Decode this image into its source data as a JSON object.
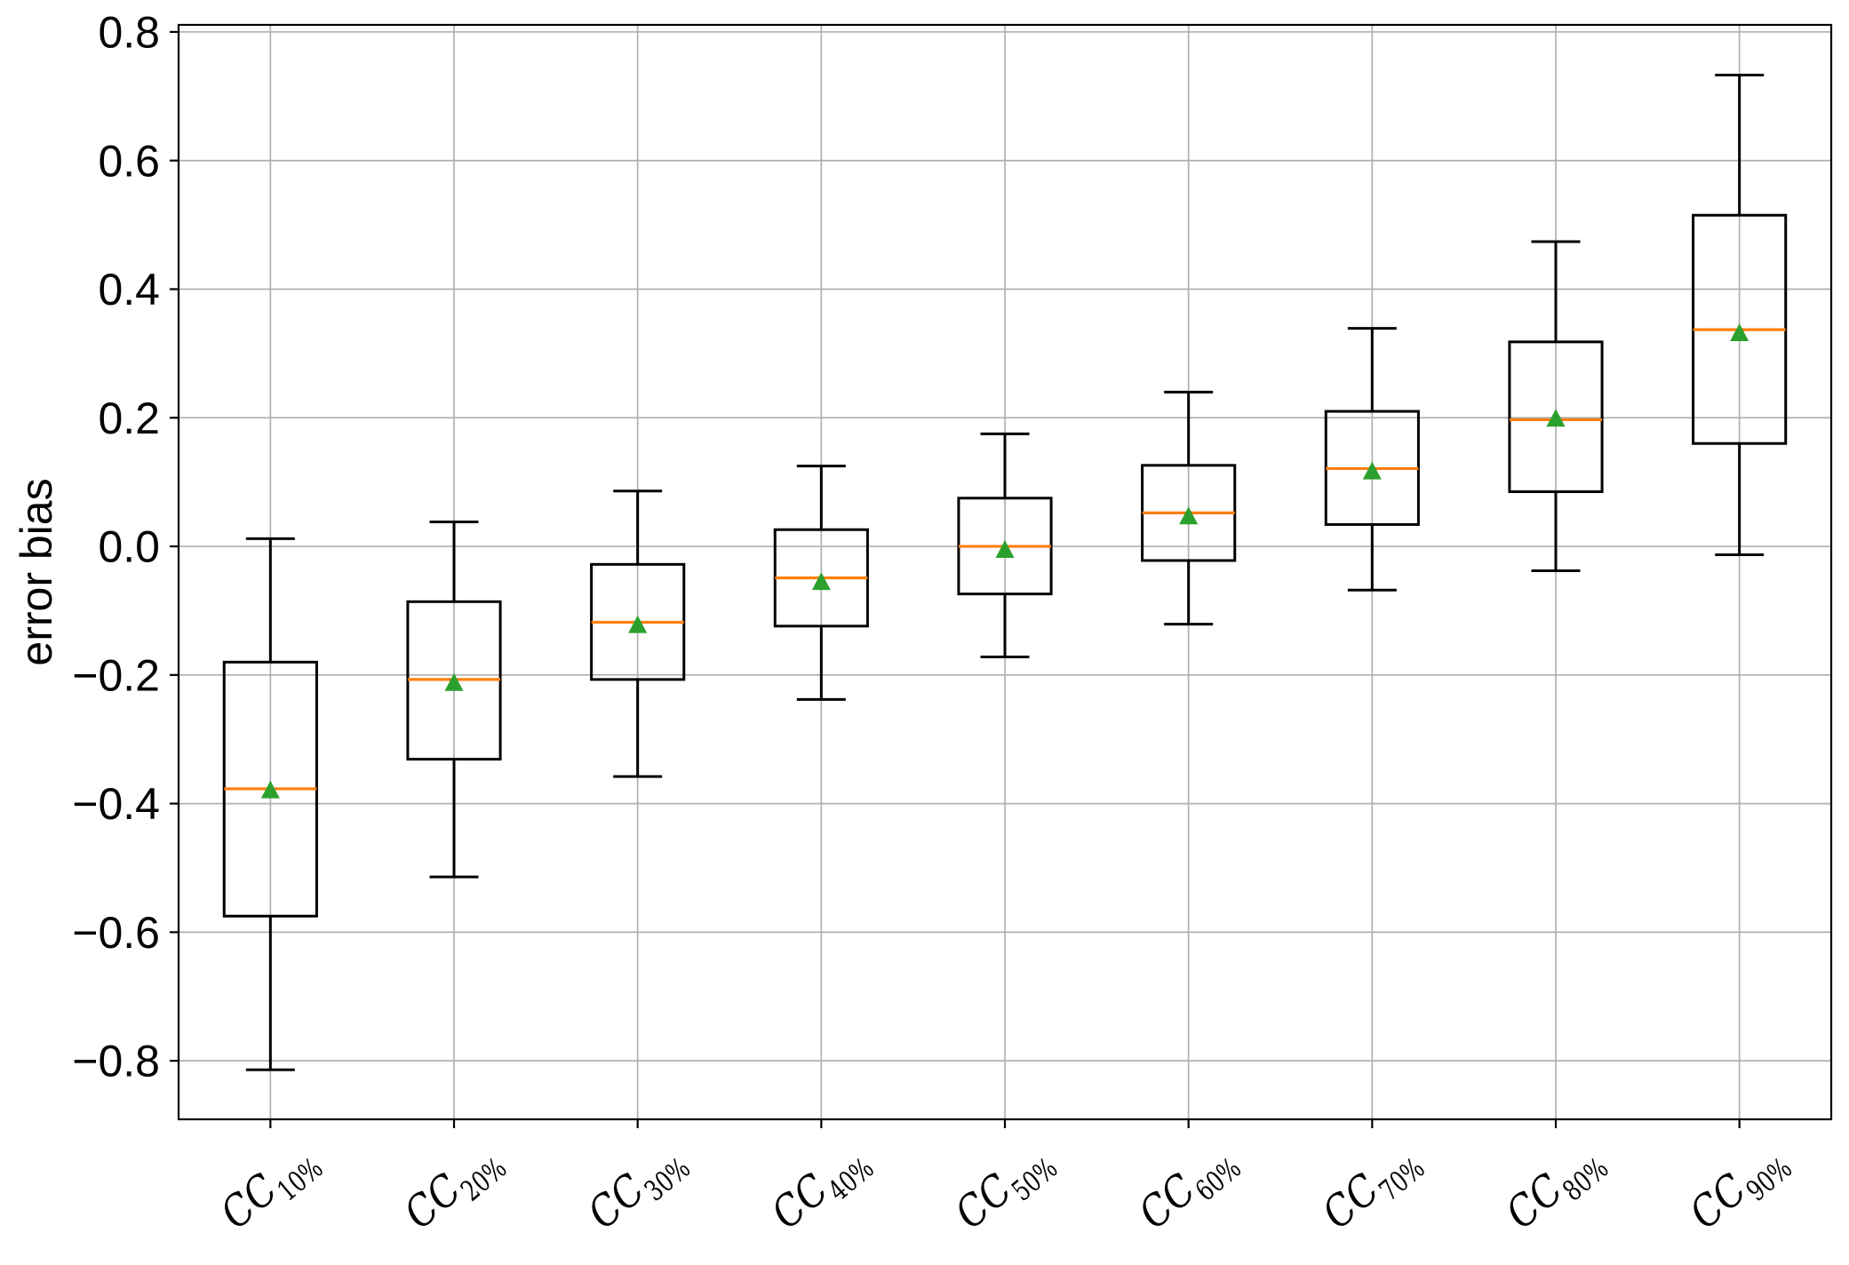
{
  "chart_data": {
    "type": "box",
    "title": "",
    "xlabel": "",
    "ylabel": "error bias",
    "grid": true,
    "legend": null,
    "ylim": [
      -0.891,
      0.811
    ],
    "y_ticks": [
      -0.8,
      -0.6,
      -0.4,
      -0.2,
      0.0,
      0.2,
      0.4,
      0.6,
      0.8
    ],
    "y_tick_labels": [
      "−0.8",
      "−0.6",
      "−0.4",
      "−0.2",
      "0.0",
      "0.2",
      "0.4",
      "0.6",
      "0.8"
    ],
    "categories": [
      {
        "base": "CC",
        "subscript": "10%"
      },
      {
        "base": "CC",
        "subscript": "20%"
      },
      {
        "base": "CC",
        "subscript": "30%"
      },
      {
        "base": "CC",
        "subscript": "40%"
      },
      {
        "base": "CC",
        "subscript": "50%"
      },
      {
        "base": "CC",
        "subscript": "60%"
      },
      {
        "base": "CC",
        "subscript": "70%"
      },
      {
        "base": "CC",
        "subscript": "80%"
      },
      {
        "base": "CC",
        "subscript": "90%"
      }
    ],
    "series": [
      {
        "name": "CC_10%",
        "whislo": -0.814,
        "q1": -0.575,
        "med": -0.377,
        "mean": -0.378,
        "q3": -0.18,
        "whishi": 0.012
      },
      {
        "name": "CC_20%",
        "whislo": -0.514,
        "q1": -0.331,
        "med": -0.207,
        "mean": -0.211,
        "q3": -0.086,
        "whishi": 0.038
      },
      {
        "name": "CC_30%",
        "whislo": -0.358,
        "q1": -0.207,
        "med": -0.118,
        "mean": -0.121,
        "q3": -0.028,
        "whishi": 0.086
      },
      {
        "name": "CC_40%",
        "whislo": -0.238,
        "q1": -0.124,
        "med": -0.049,
        "mean": -0.054,
        "q3": 0.026,
        "whishi": 0.125
      },
      {
        "name": "CC_50%",
        "whislo": -0.172,
        "q1": -0.074,
        "med": 0.0,
        "mean": -0.004,
        "q3": 0.075,
        "whishi": 0.175
      },
      {
        "name": "CC_60%",
        "whislo": -0.121,
        "q1": -0.022,
        "med": 0.052,
        "mean": 0.048,
        "q3": 0.126,
        "whishi": 0.24
      },
      {
        "name": "CC_70%",
        "whislo": -0.068,
        "q1": 0.034,
        "med": 0.121,
        "mean": 0.118,
        "q3": 0.21,
        "whishi": 0.339
      },
      {
        "name": "CC_80%",
        "whislo": -0.038,
        "q1": 0.085,
        "med": 0.197,
        "mean": 0.2,
        "q3": 0.318,
        "whishi": 0.474
      },
      {
        "name": "CC_90%",
        "whislo": -0.013,
        "q1": 0.16,
        "med": 0.337,
        "mean": 0.333,
        "q3": 0.515,
        "whishi": 0.733
      }
    ],
    "colors": {
      "box": "#000000",
      "whisker": "#000000",
      "median": "#ff7f0e",
      "mean_marker": "#2ca02c",
      "grid": "#b0b0b0",
      "spine": "#000000",
      "tick_label": "#000000",
      "background": "#ffffff"
    }
  }
}
